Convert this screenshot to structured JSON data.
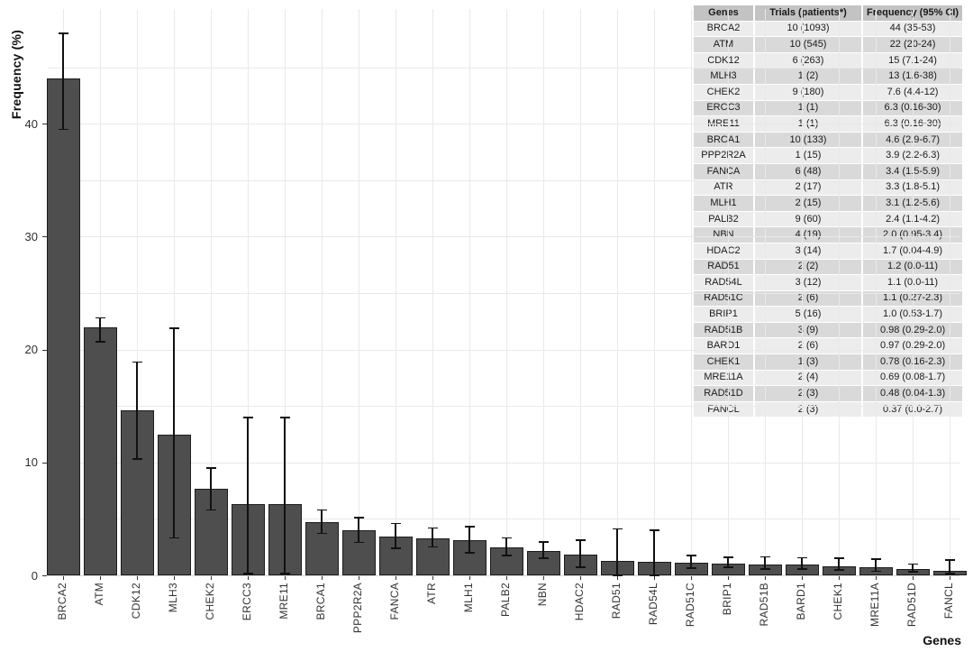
{
  "colors": {
    "bar_fill": "#4e4e4e",
    "bar_stroke": "#1c1c1c",
    "gridline": "#e9e9e9",
    "errorbar": "#111111",
    "table_header_bg": "#c3c3c3",
    "table_row_light": "#ececec",
    "table_row_dark": "#d9d9d9",
    "background": "#ffffff"
  },
  "chart_data": {
    "type": "bar",
    "title": "",
    "xlabel": "Genes",
    "ylabel": "Frequency (%)",
    "ylim": [
      0,
      50
    ],
    "yticks": [
      0,
      10,
      20,
      30,
      40
    ],
    "grid": "on",
    "legend": "none",
    "categories": [
      "BRCA2",
      "ATM",
      "CDK12",
      "MLH3",
      "CHEK2",
      "ERCC3",
      "MRE11",
      "BRCA1",
      "PPP2R2A",
      "FANCA",
      "ATR",
      "MLH1",
      "PALB2",
      "NBN",
      "HDAC2",
      "RAD51",
      "RAD54L",
      "RAD51C",
      "BRIP1",
      "RAD51B",
      "BARD1",
      "CHEK1",
      "MRE11A",
      "RAD51D",
      "FANCL"
    ],
    "values": [
      44,
      22,
      14.6,
      12.5,
      7.7,
      6.3,
      6.3,
      4.7,
      4.0,
      3.45,
      3.3,
      3.1,
      2.45,
      2.15,
      1.85,
      1.25,
      1.2,
      1.1,
      1.0,
      0.98,
      0.97,
      0.8,
      0.72,
      0.55,
      0.42
    ],
    "error_low": [
      39.5,
      20.7,
      10.3,
      3.3,
      5.8,
      0.16,
      0.16,
      3.7,
      2.9,
      2.4,
      2.5,
      2.0,
      1.75,
      1.5,
      0.7,
      0.0,
      0.0,
      0.64,
      0.7,
      0.58,
      0.56,
      0.5,
      0.37,
      0.3,
      0.16
    ],
    "error_high": [
      48.0,
      22.8,
      18.9,
      21.9,
      9.5,
      14.0,
      14.0,
      5.8,
      5.1,
      4.6,
      4.2,
      4.3,
      3.3,
      2.95,
      3.1,
      4.1,
      4.0,
      1.75,
      1.6,
      1.65,
      1.57,
      1.5,
      1.43,
      1.0,
      1.35
    ]
  },
  "table": {
    "headers": [
      "Genes",
      "Trials (patients*)",
      "Frequency (95% CI)"
    ],
    "rows": [
      [
        "BRCA2",
        "10 (1093)",
        "44 (35-53)"
      ],
      [
        "ATM",
        "10 (545)",
        "22 (20-24)"
      ],
      [
        "CDK12",
        "6 (263)",
        "15 (7.1-24)"
      ],
      [
        "MLH3",
        "1 (2)",
        "13 (1.6-38)"
      ],
      [
        "CHEK2",
        "9 (180)",
        "7.6 (4.4-12)"
      ],
      [
        "ERCC3",
        "1 (1)",
        "6.3 (0.16-30)"
      ],
      [
        "MRE11",
        "1 (1)",
        "6.3 (0.16-30)"
      ],
      [
        "BRCA1",
        "10 (133)",
        "4.6 (2.9-6.7)"
      ],
      [
        "PPP2R2A",
        "1 (15)",
        "3.9 (2.2-6.3)"
      ],
      [
        "FANCA",
        "6 (48)",
        "3.4 (1.5-5.9)"
      ],
      [
        "ATR",
        "2 (17)",
        "3.3 (1.8-5.1)"
      ],
      [
        "MLH1",
        "2 (15)",
        "3.1 (1.2-5.6)"
      ],
      [
        "PALB2",
        "9 (60)",
        "2.4 (1.1-4.2)"
      ],
      [
        "NBN",
        "4 (19)",
        "2.0 (0.95-3.4)"
      ],
      [
        "HDAC2",
        "3 (14)",
        "1.7 (0.04-4.9)"
      ],
      [
        "RAD51",
        "2 (2)",
        "1.2 (0.0-11)"
      ],
      [
        "RAD54L",
        "3 (12)",
        "1.1 (0.0-11)"
      ],
      [
        "RAD51C",
        "2 (6)",
        "1.1 (0.27-2.3)"
      ],
      [
        "BRIP1",
        "5 (16)",
        "1.0 (0.53-1.7)"
      ],
      [
        "RAD51B",
        "3 (9)",
        "0.98 (0.29-2.0)"
      ],
      [
        "BARD1",
        "2 (6)",
        "0.97 (0.29-2.0)"
      ],
      [
        "CHEK1",
        "1 (3)",
        "0.78 (0.16-2.3)"
      ],
      [
        "MRE11A",
        "2 (4)",
        "0.69 (0.08-1.7)"
      ],
      [
        "RAD51D",
        "2 (3)",
        "0.48 (0.04-1.3)"
      ],
      [
        "FANCL",
        "2 (3)",
        "0.37 (0.0-2.7)"
      ]
    ]
  }
}
